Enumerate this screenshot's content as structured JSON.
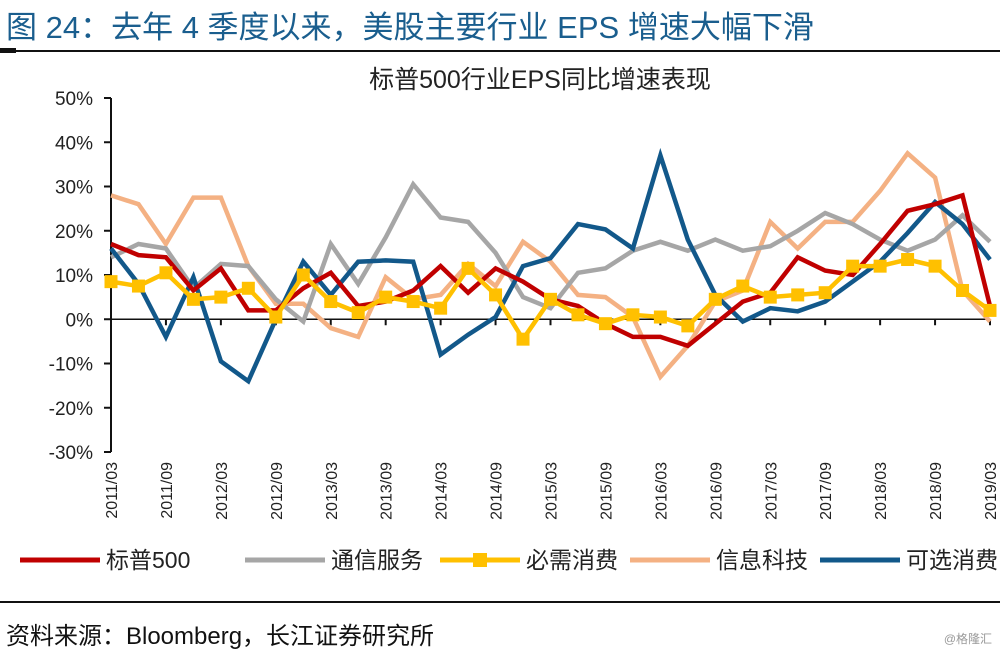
{
  "figure": {
    "title": "图 24：去年 4 季度以来，美股主要行业 EPS 增速大幅下滑",
    "source": "资料来源：Bloomberg，长江证券研究所",
    "watermark": "@格隆汇"
  },
  "chart_data": {
    "type": "line",
    "title": "标普500行业EPS同比增速表现",
    "xlabel": "",
    "ylabel": "",
    "ylim": [
      -30,
      50
    ],
    "yticks": [
      -30,
      -20,
      -10,
      0,
      10,
      20,
      30,
      40,
      50
    ],
    "ytick_labels": [
      "-30%",
      "-20%",
      "-10%",
      "0%",
      "10%",
      "20%",
      "30%",
      "40%",
      "50%"
    ],
    "grid": false,
    "legend_position": "bottom",
    "x": [
      "2011/03",
      "2011/06",
      "2011/09",
      "2011/12",
      "2012/03",
      "2012/06",
      "2012/09",
      "2012/12",
      "2013/03",
      "2013/06",
      "2013/09",
      "2013/12",
      "2014/03",
      "2014/06",
      "2014/09",
      "2014/12",
      "2015/03",
      "2015/06",
      "2015/09",
      "2015/12",
      "2016/03",
      "2016/06",
      "2016/09",
      "2016/12",
      "2017/03",
      "2017/06",
      "2017/09",
      "2017/12",
      "2018/03",
      "2018/06",
      "2018/09",
      "2018/12",
      "2019/03"
    ],
    "xtick_labels": [
      "2011/03",
      "2011/09",
      "2012/03",
      "2012/09",
      "2013/03",
      "2013/09",
      "2014/03",
      "2014/09",
      "2015/03",
      "2015/09",
      "2016/03",
      "2016/09",
      "2017/03",
      "2017/09",
      "2018/03",
      "2018/09",
      "2019/03"
    ],
    "series": [
      {
        "name": "标普500",
        "color": "#c00000",
        "marker": "none",
        "values": [
          17,
          14.5,
          14,
          6.5,
          11.5,
          2,
          2,
          7,
          10.5,
          3,
          4,
          6.5,
          12,
          6,
          11.5,
          8.5,
          4.5,
          3,
          -1,
          -4,
          -4,
          -6,
          -1,
          4,
          6,
          14,
          11,
          10,
          17,
          24.5,
          26,
          28,
          3
        ]
      },
      {
        "name": "通信服务",
        "color": "#a6a6a6",
        "marker": "none",
        "values": [
          14,
          17,
          16,
          7,
          12.5,
          12,
          4.5,
          -0.5,
          17,
          8,
          18.5,
          30.5,
          23,
          22,
          15,
          5,
          2.5,
          10.5,
          11.5,
          15.5,
          17.5,
          15.5,
          18,
          15.5,
          16.5,
          20,
          24,
          21.5,
          18,
          15.5,
          18,
          23.5,
          17.5
        ]
      },
      {
        "name": "必需消费",
        "color": "#ffc000",
        "marker": "square",
        "values": [
          8.5,
          7.5,
          10.5,
          4.5,
          5,
          7,
          0.5,
          10,
          4,
          1.5,
          5,
          4,
          2.5,
          11.5,
          5.5,
          -4.5,
          4.5,
          1,
          -1,
          1,
          0.5,
          -1.5,
          4.5,
          7.5,
          5,
          5.5,
          6,
          12,
          12,
          13.5,
          12,
          6.5,
          2
        ]
      },
      {
        "name": "信息科技",
        "color": "#f4b183",
        "marker": "none",
        "values": [
          28,
          26,
          17,
          27.5,
          27.5,
          12,
          3.5,
          3.5,
          -2,
          -4,
          9.5,
          4.5,
          5.5,
          12.5,
          7.5,
          17.5,
          13,
          5.5,
          5,
          0.5,
          -13,
          -6,
          4,
          6.5,
          22,
          16,
          22,
          22,
          29,
          37.5,
          32,
          6.5,
          -0.5
        ]
      },
      {
        "name": "可选消费",
        "color": "#12588a",
        "marker": "none",
        "values": [
          16,
          8,
          -4,
          9.5,
          -9.5,
          -14,
          0,
          13,
          5.5,
          13,
          13.3,
          13,
          -8,
          -3.5,
          0.5,
          12,
          13.8,
          21.5,
          20.3,
          16,
          37,
          18,
          5.5,
          -0.5,
          2.5,
          1.8,
          4,
          8.5,
          13,
          19.5,
          26.5,
          21.5,
          13.5
        ]
      }
    ]
  }
}
